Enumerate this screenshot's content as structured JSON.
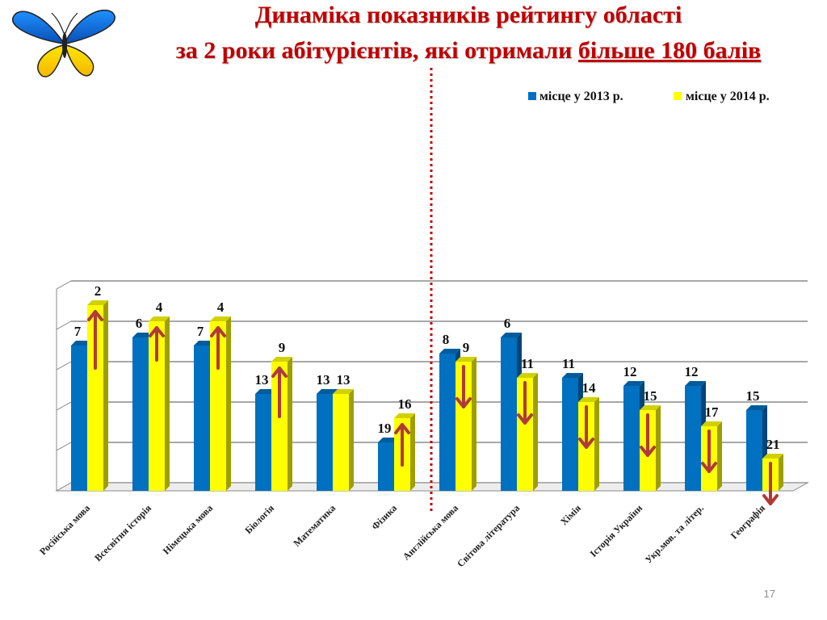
{
  "title": {
    "line1": "Динаміка показників рейтингу області",
    "line2_prefix": "за 2 роки абітурієнтів, які отримали ",
    "line2_underlined": "більше 180 балів"
  },
  "slide_number": "17",
  "colors": {
    "title": "#c00000",
    "bar2013": "#0070c0",
    "bar2014": "#ffff00",
    "arrow": "#b03a3a",
    "divider": "#c00000"
  },
  "icons": {
    "logo": "butterfly-icon"
  },
  "chart_data": {
    "type": "bar",
    "orientation": "vertical-3d",
    "ylim_rank": [
      0,
      25
    ],
    "y_inverted": true,
    "grid": true,
    "legend_position": "top-right",
    "categories": [
      "Російська мова",
      "Всесвітня історія",
      "Німецька мова",
      "Біологія",
      "Математика",
      "Фізика",
      "Англійська мова",
      "Світова література",
      "Хімія",
      "Історія України",
      "Укр.мов. та літер.",
      "Географія"
    ],
    "series": [
      {
        "name": "місце у 2013 р.",
        "values": [
          7,
          6,
          7,
          13,
          13,
          19,
          8,
          6,
          11,
          12,
          12,
          15
        ]
      },
      {
        "name": "місце у 2014 р.",
        "values": [
          2,
          4,
          4,
          9,
          13,
          16,
          9,
          11,
          14,
          15,
          17,
          21
        ]
      }
    ],
    "trend": [
      "up",
      "up",
      "up",
      "up",
      "none",
      "up",
      "down",
      "down",
      "down",
      "down",
      "down",
      "down"
    ],
    "divider_after_category": 5
  }
}
